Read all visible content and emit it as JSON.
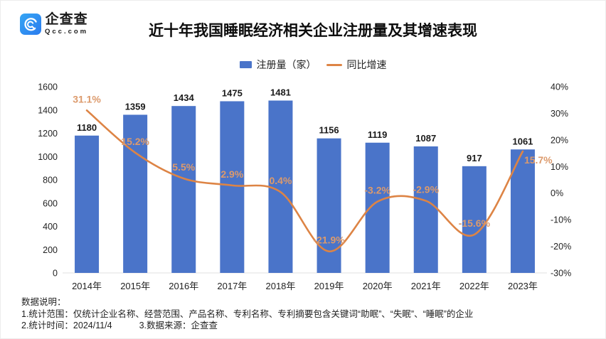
{
  "header": {
    "logo": {
      "name": "企查查",
      "domain": "Qcc.com"
    },
    "title": "近十年我国睡眠经济相关企业注册量及其增速表现"
  },
  "legend": [
    {
      "label": "注册量（家）",
      "type": "bar",
      "color": "#4A74C9"
    },
    {
      "label": "同比增速",
      "type": "line",
      "color": "#DD8445"
    }
  ],
  "colors": {
    "bar": "#4A74C9",
    "line": "#DD8445",
    "pct_label": "#DC9A6C",
    "axis_line": "#E0E0E0",
    "logo_blue_light": "#35A6F4",
    "logo_blue_dark": "#2B7BEE"
  },
  "chart_data": {
    "type": "bar",
    "title": "近十年我国睡眠经济相关企业注册量及其增速表现",
    "categories": [
      "2014年",
      "2015年",
      "2016年",
      "2017年",
      "2018年",
      "2019年",
      "2020年",
      "2021年",
      "2022年",
      "2023年"
    ],
    "series": [
      {
        "name": "注册量（家）",
        "type": "bar",
        "axis": "left",
        "values": [
          1180,
          1359,
          1434,
          1475,
          1481,
          1156,
          1119,
          1087,
          917,
          1061
        ],
        "color": "#4A74C9"
      },
      {
        "name": "同比增速",
        "type": "line",
        "axis": "right",
        "values": [
          31.1,
          15.2,
          5.5,
          2.9,
          0.4,
          -21.9,
          -3.2,
          -2.9,
          -15.6,
          15.7
        ],
        "labels": [
          "31.1%",
          "15.2%",
          "5.5%",
          "2.9%",
          "0.4%",
          "-21.9%",
          "-3.2%",
          "-2.9%",
          "-15.6%",
          "15.7%"
        ],
        "color": "#DD8445"
      }
    ],
    "left_axis": {
      "min": 0,
      "max": 1600,
      "step": 200,
      "ticks": [
        "0",
        "200",
        "400",
        "600",
        "800",
        "1000",
        "1200",
        "1400",
        "1600"
      ]
    },
    "right_axis": {
      "min": -30,
      "max": 40,
      "step": 10,
      "ticks": [
        "-30%",
        "-20%",
        "-10%",
        "0%",
        "10%",
        "20%",
        "30%",
        "40%"
      ]
    },
    "grid": false,
    "legend_position": "top"
  },
  "footer": {
    "heading": "数据说明：",
    "line1": "1.统计范围：仅统计企业名称、经营范围、产品名称、专利名称、专利摘要包含关键词“助眠”、“失眠”、“睡眠”的企业",
    "line2a": "2.统计时间：2024/11/4",
    "line2b": "3.数据来源：企查查"
  }
}
